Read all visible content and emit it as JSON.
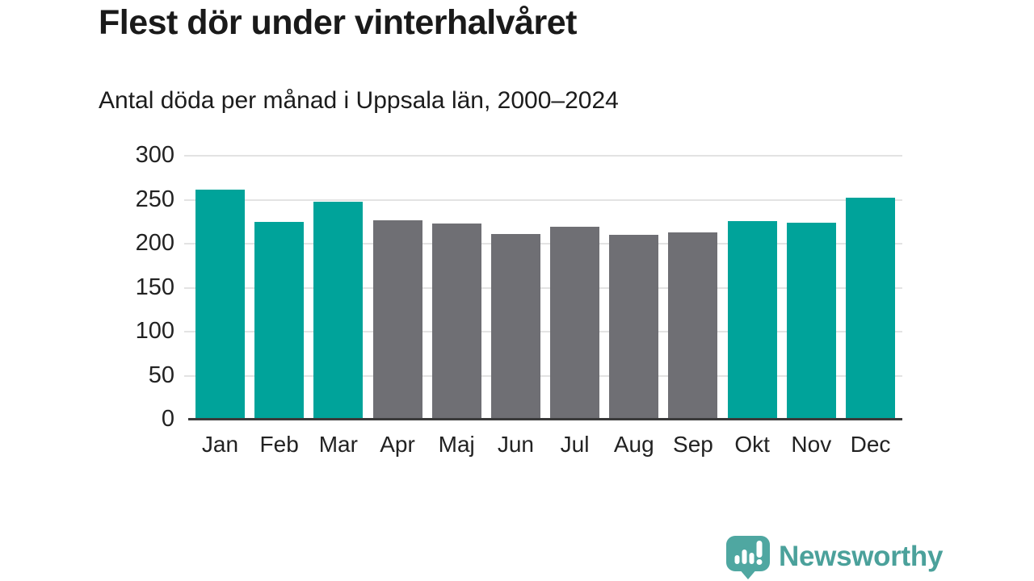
{
  "title": "Flest dör under vinterhalvåret",
  "subtitle": "Antal döda per månad i Uppsala län, 2000–2024",
  "branding": {
    "name": "Newsworthy",
    "color": "#4ba19b",
    "icon": "newsworthy-bar-chart-bubble-icon"
  },
  "colors": {
    "teal": "#00a39a",
    "gray": "#6f6f74",
    "gridline": "#e3e3e3",
    "axis": "#3a3a3a",
    "text": "#1c1c1c"
  },
  "chart_data": {
    "type": "bar",
    "title": "Flest dör under vinterhalvåret",
    "subtitle": "Antal döda per månad i Uppsala län, 2000–2024",
    "categories": [
      "Jan",
      "Feb",
      "Mar",
      "Apr",
      "Maj",
      "Jun",
      "Jul",
      "Aug",
      "Sep",
      "Okt",
      "Nov",
      "Dec"
    ],
    "values": [
      261,
      224,
      247,
      226,
      222,
      210,
      218,
      209,
      212,
      225,
      223,
      251
    ],
    "bar_colors": [
      "teal",
      "teal",
      "teal",
      "gray",
      "gray",
      "gray",
      "gray",
      "gray",
      "gray",
      "teal",
      "teal",
      "teal"
    ],
    "ylim": [
      0,
      300
    ],
    "yticks": [
      0,
      50,
      100,
      150,
      200,
      250,
      300
    ],
    "grid": "horizontal-only",
    "legend": "none",
    "xlabel": "",
    "ylabel": ""
  }
}
